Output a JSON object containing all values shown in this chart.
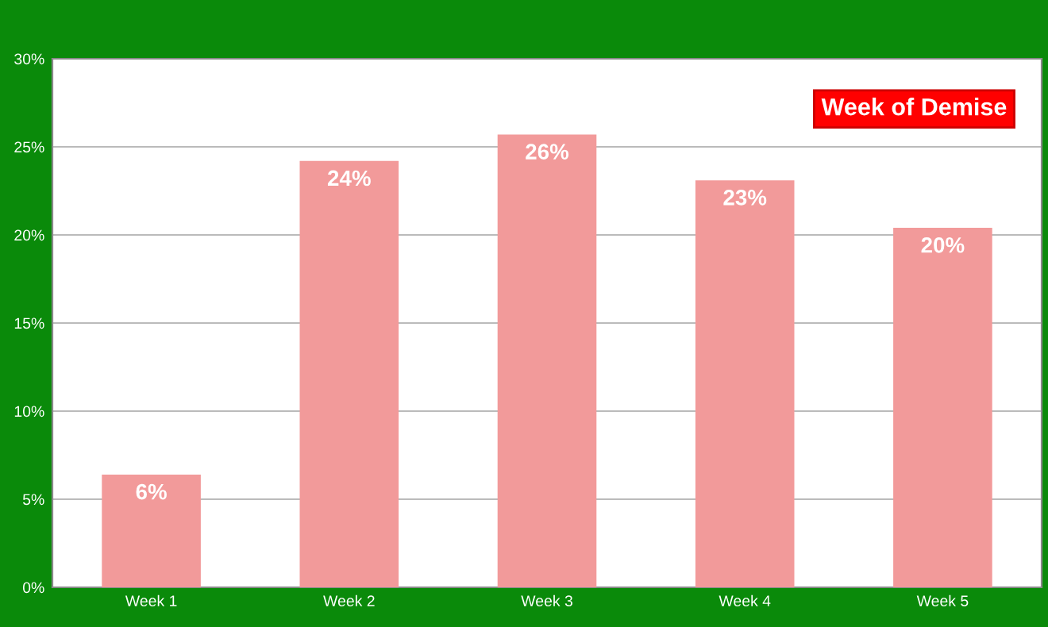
{
  "chart_data": {
    "type": "bar",
    "title": "Week of Demise",
    "categories": [
      "Week 1",
      "Week 2",
      "Week 3",
      "Week 4",
      "Week 5"
    ],
    "values": [
      6.4,
      24.2,
      25.7,
      23.1,
      20.4
    ],
    "value_labels": [
      "6%",
      "24%",
      "26%",
      "23%",
      "20%"
    ],
    "color": "#f29a9a",
    "ylim": [
      0,
      30
    ],
    "yticks": [
      {
        "value": 0,
        "label": "0%"
      },
      {
        "value": 5,
        "label": "5%"
      },
      {
        "value": 10,
        "label": "10%"
      },
      {
        "value": 15,
        "label": "15%"
      },
      {
        "value": 20,
        "label": "20%"
      },
      {
        "value": 25,
        "label": "25%"
      },
      {
        "value": 30,
        "label": "30%"
      }
    ],
    "grid": "y"
  }
}
